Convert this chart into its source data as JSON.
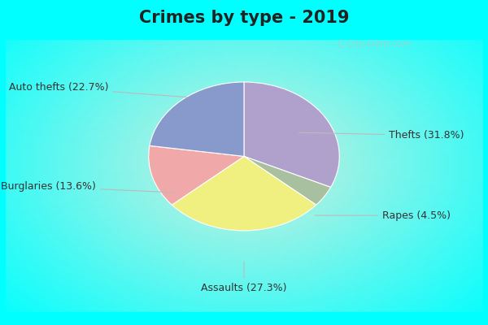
{
  "title": "Crimes by type - 2019",
  "sizes": [
    31.8,
    4.5,
    27.3,
    13.6,
    22.7
  ],
  "colors": [
    "#b0a0cc",
    "#a8c0a0",
    "#f0f080",
    "#f0a8a8",
    "#8899cc"
  ],
  "border_color": "#00ffff",
  "bg_center_color": "#d8f0e0",
  "title_fontsize": 15,
  "label_fontsize": 9,
  "watermark": "ⓘ City-Data.com",
  "startangle": 90
}
